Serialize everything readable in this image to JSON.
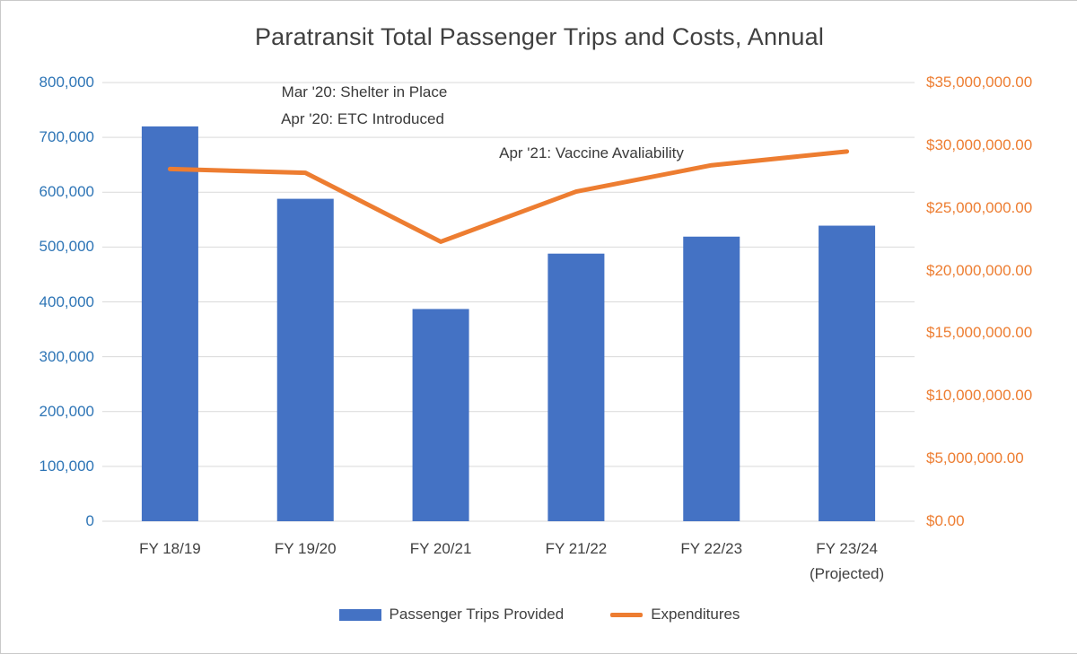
{
  "colors": {
    "bar": "#4472C4",
    "line": "#ED7D31",
    "left_axis_labels": "#2E75B6",
    "right_axis_labels": "#ED7D31",
    "text": "#404040",
    "grid": "#D9D9D9",
    "border": "#C9C9C9"
  },
  "chart_data": {
    "type": "bar",
    "subtype": "combo-bar-line-dual-axis",
    "title": "Paratransit Total Passenger Trips and Costs, Annual",
    "categories": [
      "FY 18/19",
      "FY 19/20",
      "FY 20/21",
      "FY 21/22",
      "FY 22/23",
      "FY 23/24"
    ],
    "category_sublabels": [
      "",
      "",
      "",
      "",
      "",
      "(Projected)"
    ],
    "series": [
      {
        "name": "Passenger Trips Provided",
        "type": "bar",
        "axis": "left",
        "values": [
          720000,
          588000,
          387000,
          488000,
          519000,
          539000
        ]
      },
      {
        "name": "Expenditures",
        "type": "line",
        "axis": "right",
        "values": [
          28100000,
          27800000,
          22300000,
          26300000,
          28400000,
          29500000
        ]
      }
    ],
    "xlabel": "",
    "ylabel_left": "",
    "ylabel_right": "",
    "ylim_left": [
      0,
      800000
    ],
    "ylim_right": [
      0,
      35000000
    ],
    "grid": true,
    "legend_position": "bottom",
    "left_ticks": [
      {
        "value": 800000,
        "label": "800,000"
      },
      {
        "value": 700000,
        "label": "700,000"
      },
      {
        "value": 600000,
        "label": "600,000"
      },
      {
        "value": 500000,
        "label": "500,000"
      },
      {
        "value": 400000,
        "label": "400,000"
      },
      {
        "value": 300000,
        "label": "300,000"
      },
      {
        "value": 200000,
        "label": "200,000"
      },
      {
        "value": 100000,
        "label": "100,000"
      },
      {
        "value": 0,
        "label": "0"
      }
    ],
    "right_ticks": [
      {
        "value": 35000000,
        "label": "$35,000,000.00"
      },
      {
        "value": 30000000,
        "label": "$30,000,000.00"
      },
      {
        "value": 25000000,
        "label": "$25,000,000.00"
      },
      {
        "value": 20000000,
        "label": "$20,000,000.00"
      },
      {
        "value": 15000000,
        "label": "$15,000,000.00"
      },
      {
        "value": 10000000,
        "label": "$10,000,000.00"
      },
      {
        "value": 5000000,
        "label": "$5,000,000.00"
      },
      {
        "value": 0,
        "label": "$0.00"
      }
    ],
    "annotations": [
      {
        "text": "Mar '20: Shelter in Place",
        "x": 405,
        "y": 92
      },
      {
        "text": "Apr '20: ETC Introduced",
        "x": 403,
        "y": 122
      },
      {
        "text": "Apr '21: Vaccine Avaliability",
        "x": 658,
        "y": 160
      }
    ]
  },
  "legend": {
    "items": [
      {
        "label": "Passenger Trips Provided",
        "marker": "bar"
      },
      {
        "label": "Expenditures",
        "marker": "line"
      }
    ]
  }
}
